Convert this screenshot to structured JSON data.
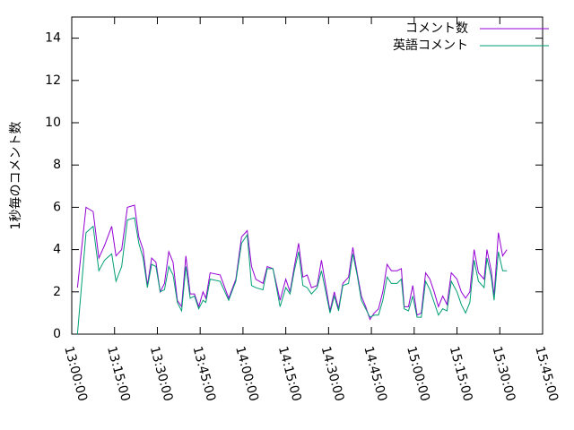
{
  "chart_data": {
    "type": "line",
    "ylabel": "1秒毎のコメント数",
    "x": [
      "13:02:00",
      "13:05:00",
      "13:07:30",
      "13:09:30",
      "13:11:30",
      "13:14:00",
      "13:15:30",
      "13:17:30",
      "13:19:30",
      "13:22:00",
      "13:23:30",
      "13:25:00",
      "13:26:30",
      "13:28:00",
      "13:29:30",
      "13:31:00",
      "13:32:30",
      "13:34:00",
      "13:35:30",
      "13:37:00",
      "13:38:30",
      "13:40:00",
      "13:41:30",
      "13:43:00",
      "13:44:30",
      "13:46:00",
      "13:47:00",
      "13:48:30",
      "13:52:00",
      "13:55:00",
      "13:57:30",
      "13:59:30",
      "14:01:30",
      "14:03:00",
      "14:04:30",
      "14:07:00",
      "14:08:30",
      "14:10:30",
      "14:13:00",
      "14:15:00",
      "14:16:30",
      "14:18:00",
      "14:19:30",
      "14:21:00",
      "14:22:30",
      "14:24:00",
      "14:26:00",
      "14:27:30",
      "14:29:00",
      "14:30:30",
      "14:32:00",
      "14:33:30",
      "14:35:00",
      "14:37:00",
      "14:38:30",
      "14:40:00",
      "14:41:30",
      "14:43:00",
      "14:44:30",
      "14:46:00",
      "14:47:30",
      "14:49:00",
      "14:50:30",
      "14:52:00",
      "14:54:00",
      "14:55:30",
      "14:56:30",
      "14:58:00",
      "14:59:30",
      "15:01:00",
      "15:02:30",
      "15:04:00",
      "15:05:30",
      "15:07:00",
      "15:08:30",
      "15:10:00",
      "15:11:30",
      "15:13:00",
      "15:15:00",
      "15:16:30",
      "15:18:00",
      "15:19:30",
      "15:21:00",
      "15:22:30",
      "15:24:30",
      "15:25:30",
      "15:27:00",
      "15:28:00",
      "15:29:30",
      "15:31:00",
      "15:32:30"
    ],
    "series": [
      {
        "name": "コメント数",
        "color": "#9400d3",
        "values": [
          2.2,
          6.0,
          5.8,
          3.6,
          4.2,
          5.1,
          3.7,
          4.0,
          6.0,
          6.1,
          4.6,
          4.0,
          2.3,
          3.6,
          3.4,
          2.0,
          2.4,
          3.9,
          3.4,
          1.6,
          1.3,
          3.7,
          1.9,
          1.9,
          1.3,
          2.0,
          1.7,
          2.9,
          2.8,
          1.7,
          2.6,
          4.6,
          4.9,
          3.2,
          2.6,
          2.4,
          3.2,
          3.1,
          1.6,
          2.6,
          2.0,
          3.2,
          4.3,
          2.7,
          2.8,
          2.2,
          2.3,
          3.5,
          2.3,
          1.1,
          2.0,
          1.2,
          2.4,
          2.7,
          4.1,
          2.9,
          1.8,
          1.3,
          0.7,
          1.0,
          1.2,
          2.0,
          3.3,
          3.0,
          3.0,
          3.1,
          1.3,
          1.3,
          2.3,
          0.9,
          1.0,
          2.9,
          2.6,
          2.0,
          1.3,
          1.8,
          1.4,
          2.9,
          2.6,
          2.0,
          1.7,
          2.0,
          4.0,
          2.9,
          2.6,
          4.0,
          3.0,
          1.8,
          4.8,
          3.7,
          4.0
        ]
      },
      {
        "name": "英語コメント",
        "color": "#009e73",
        "values": [
          0.0,
          4.8,
          5.1,
          3.0,
          3.5,
          3.8,
          2.5,
          3.2,
          5.4,
          5.5,
          4.3,
          3.6,
          2.2,
          3.3,
          3.2,
          2.0,
          2.1,
          3.2,
          2.8,
          1.5,
          1.1,
          3.2,
          1.7,
          1.8,
          1.2,
          1.6,
          1.5,
          2.6,
          2.5,
          1.6,
          2.5,
          4.3,
          4.7,
          2.3,
          2.2,
          2.1,
          3.1,
          3.1,
          1.3,
          2.2,
          1.9,
          3.0,
          3.9,
          2.3,
          2.2,
          1.9,
          2.2,
          3.0,
          2.0,
          1.0,
          1.8,
          1.1,
          2.3,
          2.4,
          3.8,
          2.8,
          1.6,
          1.2,
          0.8,
          0.9,
          0.9,
          1.6,
          2.7,
          2.4,
          2.4,
          2.6,
          1.2,
          1.1,
          1.8,
          0.8,
          0.8,
          2.5,
          2.1,
          1.5,
          0.9,
          1.2,
          1.1,
          2.5,
          2.0,
          1.4,
          1.0,
          1.5,
          3.5,
          2.5,
          2.2,
          3.6,
          2.7,
          1.6,
          3.9,
          3.0,
          3.0
        ]
      }
    ],
    "xlim": [
      "13:00:00",
      "15:45:00"
    ],
    "xticks": [
      "13:00:00",
      "13:15:00",
      "13:30:00",
      "13:45:00",
      "14:00:00",
      "14:15:00",
      "14:30:00",
      "14:45:00",
      "15:00:00",
      "15:15:00",
      "15:30:00",
      "15:45:00"
    ],
    "ylim": [
      0,
      15
    ],
    "yticks": [
      0,
      2,
      4,
      6,
      8,
      10,
      12,
      14
    ],
    "legend": "top-right"
  }
}
